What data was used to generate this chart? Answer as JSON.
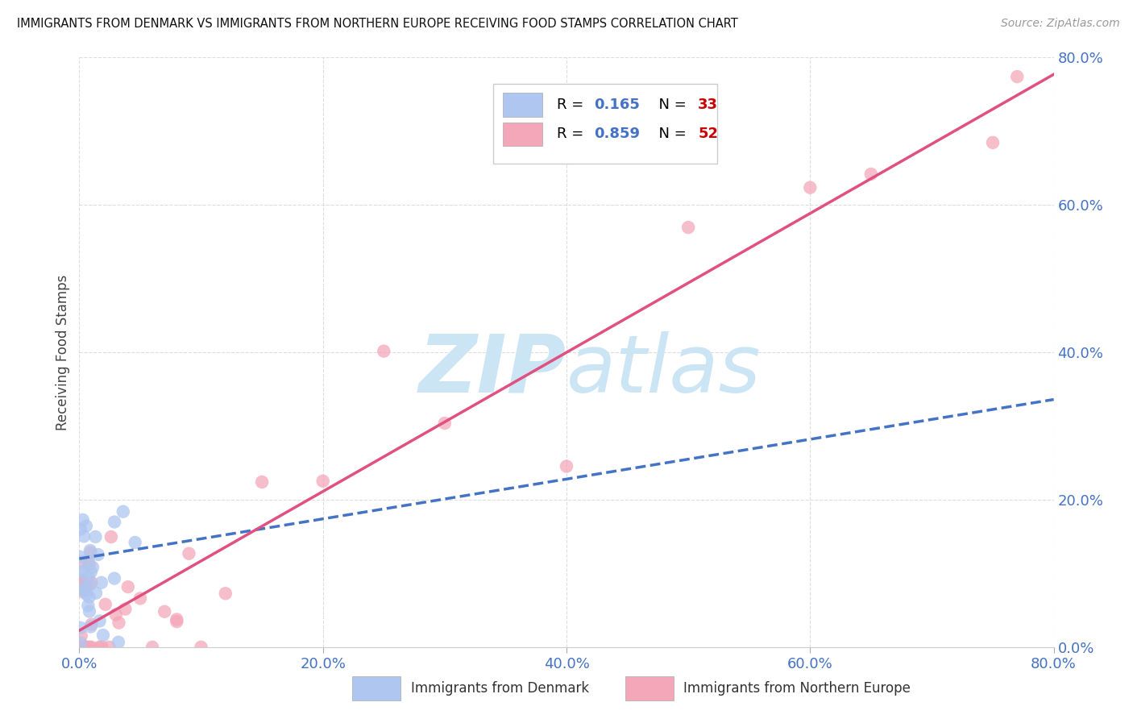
{
  "title": "IMMIGRANTS FROM DENMARK VS IMMIGRANTS FROM NORTHERN EUROPE RECEIVING FOOD STAMPS CORRELATION CHART",
  "source": "Source: ZipAtlas.com",
  "ylabel": "Receiving Food Stamps",
  "xlim": [
    0,
    0.8
  ],
  "ylim": [
    0,
    0.8
  ],
  "xtick_labels": [
    "0.0%",
    "20.0%",
    "40.0%",
    "60.0%",
    "80.0%"
  ],
  "xtick_vals": [
    0.0,
    0.2,
    0.4,
    0.6,
    0.8
  ],
  "ytick_labels": [
    "0.0%",
    "20.0%",
    "40.0%",
    "60.0%",
    "80.0%"
  ],
  "ytick_vals": [
    0.0,
    0.2,
    0.4,
    0.6,
    0.8
  ],
  "legend_labels": [
    "Immigrants from Denmark",
    "Immigrants from Northern Europe"
  ],
  "denmark_color": "#aec6f0",
  "northern_europe_color": "#f4a7b9",
  "denmark_line_color": "#4472c4",
  "northern_europe_line_color": "#e05080",
  "denmark_R": 0.165,
  "denmark_N": 33,
  "northern_europe_R": 0.859,
  "northern_europe_N": 52,
  "background_color": "#ffffff",
  "grid_color": "#dddddd",
  "watermark_color": "#cce5f5",
  "title_color": "#111111",
  "source_color": "#999999",
  "tick_label_color": "#4472c4",
  "legend_R_N_color": "#4472c4",
  "legend_N_val_color": "#cc0000"
}
